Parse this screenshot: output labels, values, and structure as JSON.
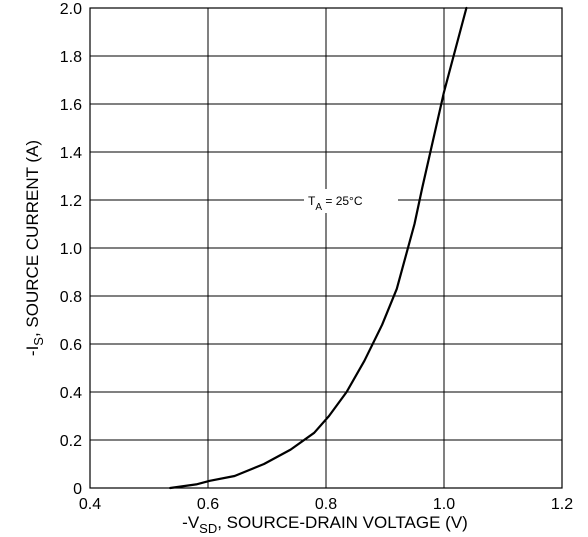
{
  "chart_data": {
    "type": "line",
    "xlabel": {
      "prefix": "-V",
      "sub": "SD",
      "suffix": ", SOURCE-DRAIN VOLTAGE (V)"
    },
    "ylabel": {
      "prefix": "-I",
      "sub": "S",
      "suffix": ", SOURCE CURRENT (A)"
    },
    "xlim": [
      0.4,
      1.2
    ],
    "ylim": [
      0,
      2.0
    ],
    "x_ticks": [
      "0.4",
      "0.6",
      "0.8",
      "1.0",
      "1.2"
    ],
    "y_ticks": [
      "0",
      "0.2",
      "0.4",
      "0.6",
      "0.8",
      "1.0",
      "1.2",
      "1.4",
      "1.6",
      "1.8",
      "2.0"
    ],
    "grid": true,
    "annotation": {
      "prefix": "T",
      "sub": "A",
      "suffix": " = 25°C"
    },
    "series": [
      {
        "color": "#000000",
        "x": [
          0.536,
          0.58,
          0.603,
          0.645,
          0.695,
          0.74,
          0.78,
          0.805,
          0.835,
          0.865,
          0.895,
          0.92,
          0.93,
          0.95,
          0.963,
          1.0,
          1.038
        ],
        "y": [
          0.0,
          0.015,
          0.03,
          0.05,
          0.1,
          0.16,
          0.23,
          0.3,
          0.4,
          0.53,
          0.68,
          0.83,
          0.92,
          1.1,
          1.25,
          1.65,
          2.0
        ]
      }
    ]
  }
}
